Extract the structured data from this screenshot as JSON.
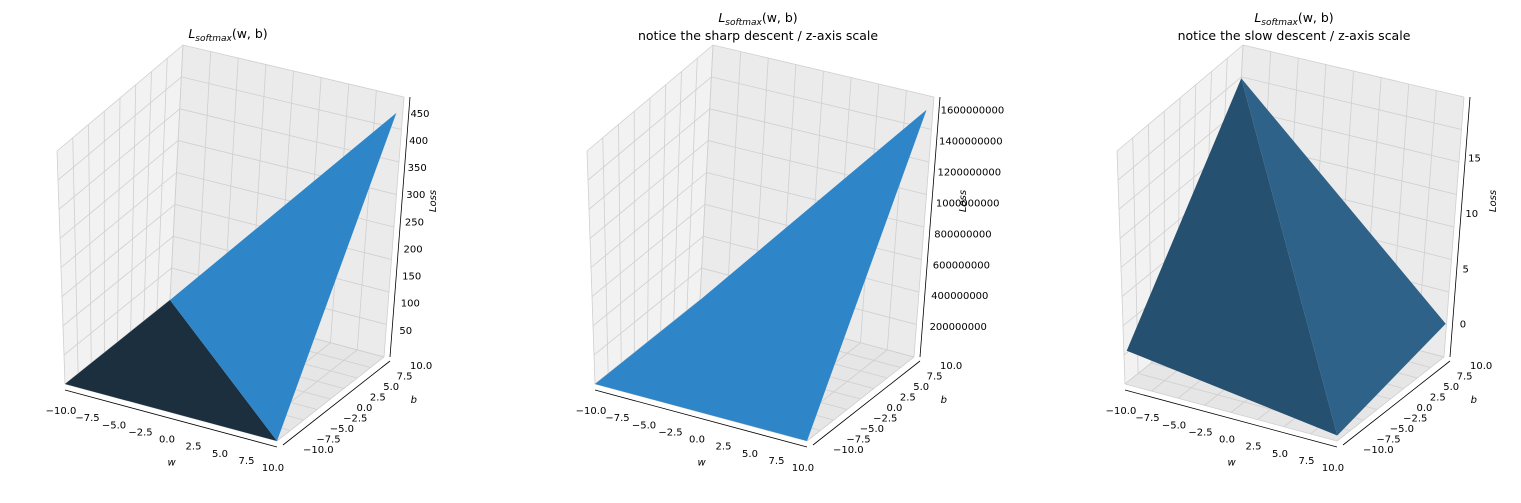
{
  "figure": {
    "background": "#ffffff",
    "surface_color": "#2e86c9",
    "pane_color": "#f2f2f2",
    "grid_color": "#cfcfcf"
  },
  "chart_data": [
    {
      "type": "surface3d",
      "title_math": {
        "main": "L",
        "sub": "softmax",
        "args": "(w, b)"
      },
      "subtitle": "",
      "xlabel": "w",
      "ylabel": "b",
      "zlabel": "Loss",
      "xticks": [
        "−10.0",
        "−7.5",
        "−5.0",
        "−2.5",
        "0.0",
        "2.5",
        "5.0",
        "7.5",
        "10.0"
      ],
      "yticks": [
        "−10.0",
        "−7.5",
        "−5.0",
        "−2.5",
        "0.0",
        "2.5",
        "5.0",
        "7.5",
        "10.0"
      ],
      "zticks": [
        "50",
        "100",
        "150",
        "200",
        "250",
        "300",
        "350",
        "400",
        "450"
      ],
      "xlim": [
        -10,
        10
      ],
      "ylim": [
        -10,
        10
      ],
      "zlim": [
        0,
        470
      ],
      "surface_corners": {
        "w_min_b_max": 0,
        "w_min_b_min": 0,
        "w_max_b_min": 0,
        "w_max_b_max": 450
      },
      "surface_note_values": {
        "min_loss_near": [
          "w=-2.5..10",
          "b=-10"
        ]
      }
    },
    {
      "type": "surface3d",
      "title_math": {
        "main": "L",
        "sub": "softmax",
        "args": "(w, b)"
      },
      "subtitle": "notice the sharp descent / z-axis scale",
      "xlabel": "w",
      "ylabel": "b",
      "zlabel": "Loss",
      "xticks": [
        "−10.0",
        "−7.5",
        "−5.0",
        "−2.5",
        "0.0",
        "2.5",
        "5.0",
        "7.5",
        "10.0"
      ],
      "yticks": [
        "−10.0",
        "−7.5",
        "−5.0",
        "−2.5",
        "0.0",
        "2.5",
        "5.0",
        "7.5",
        "10.0"
      ],
      "zticks": [
        "200000000",
        "400000000",
        "600000000",
        "800000000",
        "1000000000",
        "1200000000",
        "1400000000",
        "1600000000"
      ],
      "xlim": [
        -10,
        10
      ],
      "ylim": [
        -10,
        10
      ],
      "zlim": [
        0,
        1650000000
      ],
      "surface_corners": {
        "w_min_b_max": 0,
        "w_min_b_min": 0,
        "w_max_b_min": 0,
        "w_max_b_max": 1600000000
      }
    },
    {
      "type": "surface3d",
      "title_math": {
        "main": "L",
        "sub": "softmax",
        "args": "(w, b)"
      },
      "subtitle": "notice the slow descent / z-axis scale",
      "xlabel": "w",
      "ylabel": "b",
      "zlabel": "Loss",
      "xticks": [
        "−10.0",
        "−7.5",
        "−5.0",
        "−2.5",
        "0.0",
        "2.5",
        "5.0",
        "7.5",
        "10.0"
      ],
      "yticks": [
        "−10.0",
        "−7.5",
        "−5.0",
        "−2.5",
        "0.0",
        "2.5",
        "5.0",
        "7.5",
        "10.0"
      ],
      "zticks": [
        "0",
        "5",
        "10",
        "15"
      ],
      "xlim": [
        -10,
        10
      ],
      "ylim": [
        -10,
        10
      ],
      "zlim": [
        -3,
        20
      ],
      "surface_corners": {
        "w_min_b_max": 17,
        "w_min_b_min": 0,
        "w_max_b_min": -2.5,
        "w_max_b_max": 0
      }
    }
  ]
}
